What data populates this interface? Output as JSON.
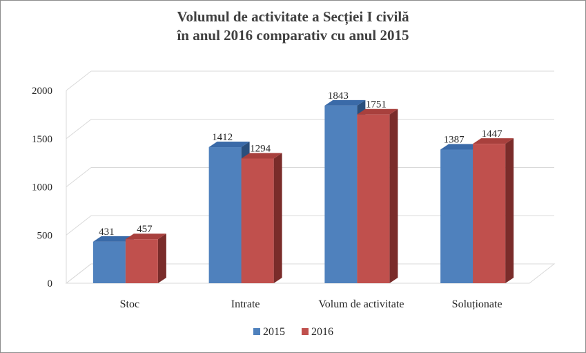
{
  "chart_data": {
    "type": "bar",
    "title_line1": "Volumul de activitate a Secției I civilă",
    "title_line2": "în anul 2016 comparativ cu anul 2015",
    "categories": [
      "Stoc",
      "Intrate",
      "Volum de activitate",
      "Soluționate"
    ],
    "series": [
      {
        "name": "2015",
        "values": [
          431,
          1412,
          1843,
          1387
        ],
        "color": "#4f81bd",
        "side_color": "#2a4f7c",
        "top_color": "#3a6aa8"
      },
      {
        "name": "2016",
        "values": [
          457,
          1294,
          1751,
          1447
        ],
        "color": "#c0504d",
        "side_color": "#7a2c2a",
        "top_color": "#a8403d"
      }
    ],
    "y_ticks": [
      "0",
      "500",
      "1000",
      "1500",
      "2000"
    ],
    "ylim": [
      0,
      2000
    ],
    "grid": true,
    "legend_position": "bottom",
    "style": "3d-clustered-column"
  }
}
